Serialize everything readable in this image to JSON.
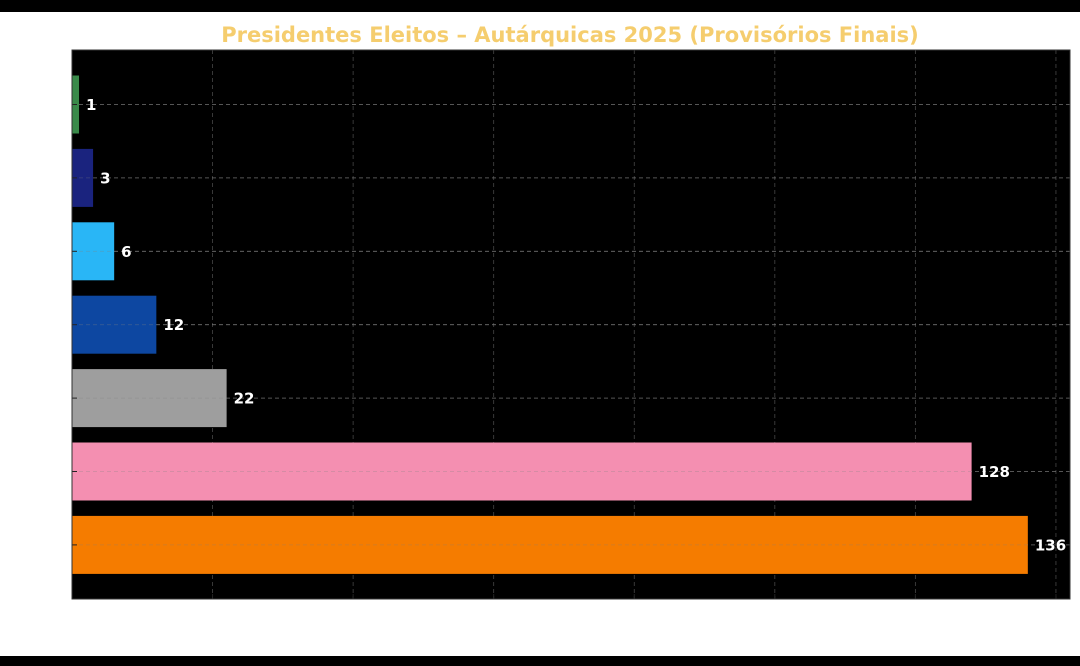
{
  "chart_data": {
    "type": "bar",
    "orientation": "horizontal",
    "title": "Presidentes Eleitos – Autárquicas 2025 (Provisórios Finais)",
    "xlabel": "",
    "ylabel": "",
    "categories": [
      "",
      "",
      "",
      "",
      "",
      "",
      ""
    ],
    "values": [
      1,
      3,
      6,
      12,
      22,
      128,
      136
    ],
    "bar_colors": [
      "#3a8a4a",
      "#1a237e",
      "#29b6f6",
      "#0d47a1",
      "#9e9e9e",
      "#f48fb1",
      "#f57c00"
    ],
    "xlim": [
      0,
      142
    ],
    "grid": true,
    "legend": "none"
  },
  "colors": {
    "title": "#f5cd6e",
    "plot_background": "#000000",
    "page_background": "#ffffff",
    "value_labels": "#ffffff",
    "grid": "#808080"
  }
}
